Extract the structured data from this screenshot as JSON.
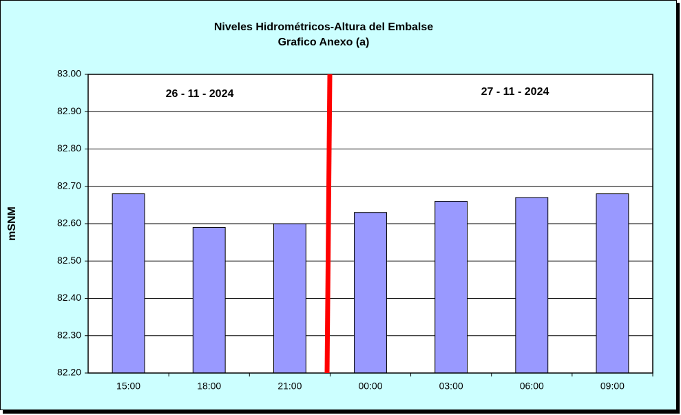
{
  "chart_data": {
    "type": "bar",
    "title": "Niveles Hidrométricos-Altura del Embalse",
    "subtitle": "Grafico Anexo (a)",
    "y_label": "mSNM",
    "annotations": [
      "26 - 11 - 2024",
      "27 - 11 - 2024"
    ],
    "categories": [
      "15:00",
      "18:00",
      "21:00",
      "00:00",
      "03:00",
      "06:00",
      "09:00"
    ],
    "values": [
      82.68,
      82.59,
      82.6,
      82.63,
      82.66,
      82.67,
      82.68
    ],
    "color": "#9999ff",
    "ylim": [
      82.2,
      83.0
    ],
    "yticks": [
      {
        "value": 82.2,
        "label": "82.20"
      },
      {
        "value": 82.3,
        "label": "82.30"
      },
      {
        "value": 82.4,
        "label": "82.40"
      },
      {
        "value": 82.5,
        "label": "82.50"
      },
      {
        "value": 82.6,
        "label": "82.60"
      },
      {
        "value": 82.7,
        "label": "82.70"
      },
      {
        "value": 82.8,
        "label": "82.80"
      },
      {
        "value": 82.9,
        "label": "82.90"
      },
      {
        "value": 83.0,
        "label": "83.00"
      }
    ],
    "grid": true
  }
}
